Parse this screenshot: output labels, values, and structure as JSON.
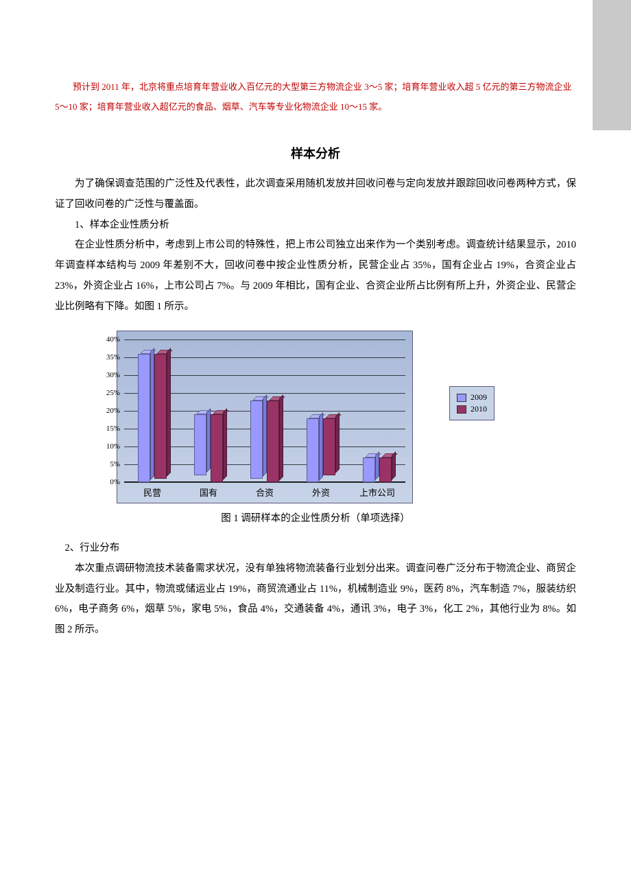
{
  "intro_red": "预计到 2011 年，北京将重点培育年营业收入百亿元的大型第三方物流企业 3～5 家；培育年营业收入超 5 亿元的第三方物流企业 5～10 家；培育年营业收入超亿元的食品、烟草、汽车等专业化物流企业 10～15 家。",
  "section_title": "样本分析",
  "para1": "为了确保调查范围的广泛性及代表性，此次调查采用随机发放并回收问卷与定向发放并跟踪回收问卷两种方式，保证了回收问卷的广泛性与覆盖面。",
  "sub1": "1、样本企业性质分析",
  "para2": "在企业性质分析中，考虑到上市公司的特殊性，把上市公司独立出来作为一个类别考虑。调查统计结果显示，2010 年调查样本结构与 2009 年差别不大，回收问卷中按企业性质分析，民营企业占 35%，国有企业占 19%，合资企业占 23%，外资企业占 16%，上市公司占 7%。与 2009 年相比，国有企业、合资企业所占比例有所上升，外资企业、民营企业比例略有下降。如图 1 所示。",
  "chart1": {
    "type": "bar",
    "categories": [
      "民营",
      "国有",
      "合资",
      "外资",
      "上市公司"
    ],
    "series": [
      {
        "name": "2009",
        "color": "#9999ff",
        "top_color": "#b3b3ff",
        "side_color": "#7a7ad9",
        "values": [
          36,
          17,
          22,
          18,
          7
        ]
      },
      {
        "name": "2010",
        "color": "#993366",
        "top_color": "#b35c85",
        "side_color": "#732650",
        "values": [
          35,
          19,
          23,
          16,
          7
        ]
      }
    ],
    "y_max": 40,
    "y_step": 5,
    "y_suffix": "%",
    "plot_bg": "#c8d4e8",
    "grid_color": "#000000",
    "legend_labels": [
      "2009",
      "2010"
    ]
  },
  "caption1": "图 1  调研样本的企业性质分析（单项选择）",
  "sub2": "2、行业分布",
  "para3": "本次重点调研物流技术装备需求状况，没有单独将物流装备行业划分出来。调查问卷广泛分布于物流企业、商贸企业及制造行业。其中，物流或储运业占 19%，商贸流通业占 11%，机械制造业 9%，医药 8%，汽车制造 7%，服装纺织 6%，电子商务 6%，烟草 5%，家电 5%，食品 4%，交通装备 4%，通讯 3%，电子 3%，化工 2%，其他行业为 8%。如图 2 所示。"
}
